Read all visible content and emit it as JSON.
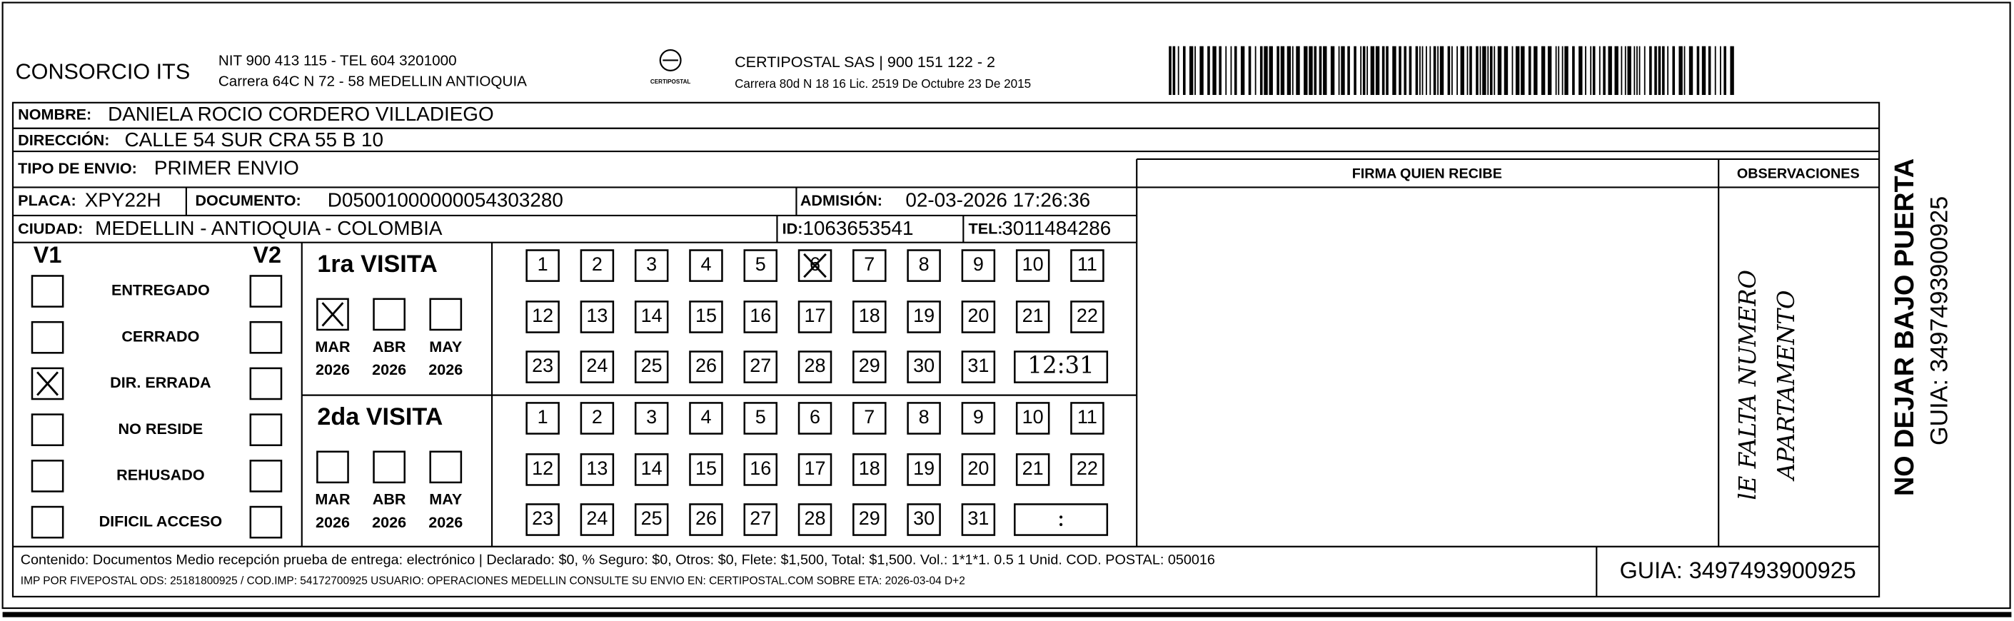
{
  "header": {
    "company": "CONSORCIO ITS",
    "nit": "NIT 900 413 115 - TEL 604 3201000",
    "address": "Carrera 64C N 72 - 58 MEDELLIN ANTIOQUIA",
    "logo_text": "CERTIPOSTAL",
    "carrier": "CERTIPOSTAL SAS | 900 151 122 - 2",
    "carrier_address": "Carrera 80d N 18 16  Lic. 2519 De Octubre 23 De 2015"
  },
  "fields": {
    "nombre": {
      "label": "NOMBRE:",
      "value": "DANIELA ROCIO CORDERO VILLADIEGO"
    },
    "direccion": {
      "label": "DIRECCIÓN:",
      "value": "CALLE 54 SUR CRA 55 B   10"
    },
    "tipo": {
      "label": "TIPO DE ENVIO:",
      "value": "PRIMER ENVIO"
    },
    "placa": {
      "label": "PLACA:",
      "value": "XPY22H"
    },
    "documento": {
      "label": "DOCUMENTO:",
      "value": "D05001000000054303280"
    },
    "admision": {
      "label": "ADMISIÓN:",
      "value": "02-03-2026 17:26:36"
    },
    "ciudad": {
      "label": "CIUDAD:",
      "value": "MEDELLIN - ANTIOQUIA - COLOMBIA"
    },
    "id": {
      "label": "ID:",
      "value": "1063653541"
    },
    "tel": {
      "label": "TEL:",
      "value": "3011484286"
    }
  },
  "firma_label": "FIRMA QUIEN RECIBE",
  "observaciones_label": "OBSERVACIONES",
  "observaciones_note": [
    "lE FALTA NUMERO",
    "APARTAMENTO"
  ],
  "status": {
    "v1_label": "V1",
    "v2_label": "V2",
    "options": [
      {
        "label": "ENTREGADO",
        "v1": false,
        "v2": false
      },
      {
        "label": "CERRADO",
        "v1": false,
        "v2": false
      },
      {
        "label": "DIR. ERRADA",
        "v1": true,
        "v2": false
      },
      {
        "label": "NO RESIDE",
        "v1": false,
        "v2": false
      },
      {
        "label": "REHUSADO",
        "v1": false,
        "v2": false
      },
      {
        "label": "DIFICIL ACCESO",
        "v1": false,
        "v2": false
      }
    ]
  },
  "visits": [
    {
      "title": "1ra VISITA",
      "months": [
        {
          "label": "MAR",
          "year": "2026",
          "checked": true
        },
        {
          "label": "ABR",
          "year": "2026",
          "checked": false
        },
        {
          "label": "MAY",
          "year": "2026",
          "checked": false
        }
      ],
      "days": [
        1,
        2,
        3,
        4,
        5,
        6,
        7,
        8,
        9,
        10,
        11,
        12,
        13,
        14,
        15,
        16,
        17,
        18,
        19,
        20,
        21,
        22,
        23,
        24,
        25,
        26,
        27,
        28,
        29,
        30,
        31
      ],
      "marked": [
        6
      ],
      "time": "12:31"
    },
    {
      "title": "2da VISITA",
      "months": [
        {
          "label": "MAR",
          "year": "2026",
          "checked": false
        },
        {
          "label": "ABR",
          "year": "2026",
          "checked": false
        },
        {
          "label": "MAY",
          "year": "2026",
          "checked": false
        }
      ],
      "days": [
        1,
        2,
        3,
        4,
        5,
        6,
        7,
        8,
        9,
        10,
        11,
        12,
        13,
        14,
        15,
        16,
        17,
        18,
        19,
        20,
        21,
        22,
        23,
        24,
        25,
        26,
        27,
        28,
        29,
        30,
        31
      ],
      "marked": [],
      "time": ":"
    }
  ],
  "footer": {
    "line1": "Contenido: Documentos Medio recepción prueba de entrega: electrónico | Declarado: $0, % Seguro: $0, Otros: $0, Flete: $1,500, Total: $1,500. Vol.: 1*1*1. 0.5  1 Unid. COD. POSTAL: 050016",
    "line2": "IMP POR FIVEPOSTAL ODS: 25181800925 / COD.IMP: 54172700925 USUARIO: OPERACIONES MEDELLIN CONSULTE SU ENVIO EN: CERTIPOSTAL.COM SOBRE ETA: 2026-03-04 D+2",
    "guia": "GUIA: 3497493900925"
  },
  "side": {
    "warning": "NO DEJAR BAJO PUERTA",
    "guia": "GUIA: 3497493900925"
  }
}
